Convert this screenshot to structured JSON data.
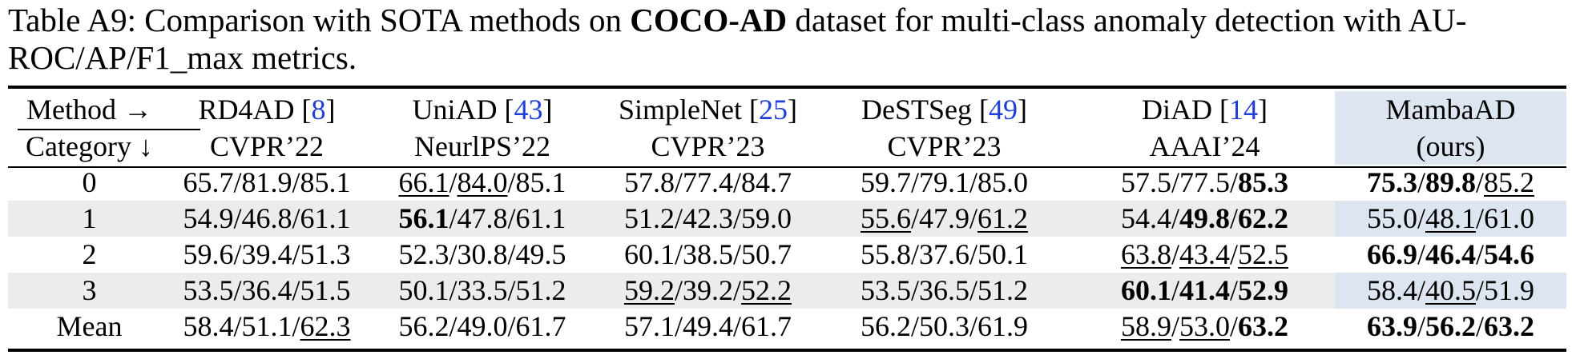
{
  "caption": {
    "prefix": "Table A9: Comparison with SOTA methods on ",
    "dataset": "COCO-AD",
    "suffix": " dataset for multi-class anomaly detection with AU-ROC/AP/F1_max metrics."
  },
  "header": {
    "method_label": "Method →",
    "category_label": "Category ↓",
    "methods": [
      {
        "name": "RD4AD",
        "ref": "8",
        "venue": "CVPR’22"
      },
      {
        "name": "UniAD",
        "ref": "43",
        "venue": "NeurlPS’22"
      },
      {
        "name": "SimpleNet",
        "ref": "25",
        "venue": "CVPR’23"
      },
      {
        "name": "DeSTSeg",
        "ref": "49",
        "venue": "CVPR’23"
      },
      {
        "name": "DiAD",
        "ref": "14",
        "venue": "AAAI’24"
      },
      {
        "name": "MambaAD",
        "ref": "",
        "venue": "(ours)"
      }
    ]
  },
  "rows": [
    {
      "category": "0",
      "cells": [
        [
          {
            "v": "65.7",
            "s": ""
          },
          {
            "v": "81.9",
            "s": ""
          },
          {
            "v": "85.1",
            "s": ""
          }
        ],
        [
          {
            "v": "66.1",
            "s": "u"
          },
          {
            "v": "84.0",
            "s": "u"
          },
          {
            "v": "85.1",
            "s": ""
          }
        ],
        [
          {
            "v": "57.8",
            "s": ""
          },
          {
            "v": "77.4",
            "s": ""
          },
          {
            "v": "84.7",
            "s": ""
          }
        ],
        [
          {
            "v": "59.7",
            "s": ""
          },
          {
            "v": "79.1",
            "s": ""
          },
          {
            "v": "85.0",
            "s": ""
          }
        ],
        [
          {
            "v": "57.5",
            "s": ""
          },
          {
            "v": "77.5",
            "s": ""
          },
          {
            "v": "85.3",
            "s": "b"
          }
        ],
        [
          {
            "v": "75.3",
            "s": "b"
          },
          {
            "v": "89.8",
            "s": "b"
          },
          {
            "v": "85.2",
            "s": "u"
          }
        ]
      ]
    },
    {
      "category": "1",
      "cells": [
        [
          {
            "v": "54.9",
            "s": ""
          },
          {
            "v": "46.8",
            "s": ""
          },
          {
            "v": "61.1",
            "s": ""
          }
        ],
        [
          {
            "v": "56.1",
            "s": "b"
          },
          {
            "v": "47.8",
            "s": ""
          },
          {
            "v": "61.1",
            "s": ""
          }
        ],
        [
          {
            "v": "51.2",
            "s": ""
          },
          {
            "v": "42.3",
            "s": ""
          },
          {
            "v": "59.0",
            "s": ""
          }
        ],
        [
          {
            "v": "55.6",
            "s": "u"
          },
          {
            "v": "47.9",
            "s": ""
          },
          {
            "v": "61.2",
            "s": "u"
          }
        ],
        [
          {
            "v": "54.4",
            "s": ""
          },
          {
            "v": "49.8",
            "s": "b"
          },
          {
            "v": "62.2",
            "s": "b"
          }
        ],
        [
          {
            "v": "55.0",
            "s": ""
          },
          {
            "v": "48.1",
            "s": "u"
          },
          {
            "v": "61.0",
            "s": ""
          }
        ]
      ]
    },
    {
      "category": "2",
      "cells": [
        [
          {
            "v": "59.6",
            "s": ""
          },
          {
            "v": "39.4",
            "s": ""
          },
          {
            "v": "51.3",
            "s": ""
          }
        ],
        [
          {
            "v": "52.3",
            "s": ""
          },
          {
            "v": "30.8",
            "s": ""
          },
          {
            "v": "49.5",
            "s": ""
          }
        ],
        [
          {
            "v": "60.1",
            "s": ""
          },
          {
            "v": "38.5",
            "s": ""
          },
          {
            "v": "50.7",
            "s": ""
          }
        ],
        [
          {
            "v": "55.8",
            "s": ""
          },
          {
            "v": "37.6",
            "s": ""
          },
          {
            "v": "50.1",
            "s": ""
          }
        ],
        [
          {
            "v": "63.8",
            "s": "u"
          },
          {
            "v": "43.4",
            "s": "u"
          },
          {
            "v": "52.5",
            "s": "u"
          }
        ],
        [
          {
            "v": "66.9",
            "s": "b"
          },
          {
            "v": "46.4",
            "s": "b"
          },
          {
            "v": "54.6",
            "s": "b"
          }
        ]
      ]
    },
    {
      "category": "3",
      "cells": [
        [
          {
            "v": "53.5",
            "s": ""
          },
          {
            "v": "36.4",
            "s": ""
          },
          {
            "v": "51.5",
            "s": ""
          }
        ],
        [
          {
            "v": "50.1",
            "s": ""
          },
          {
            "v": "33.5",
            "s": ""
          },
          {
            "v": "51.2",
            "s": ""
          }
        ],
        [
          {
            "v": "59.2",
            "s": "u"
          },
          {
            "v": "39.2",
            "s": ""
          },
          {
            "v": "52.2",
            "s": "u"
          }
        ],
        [
          {
            "v": "53.5",
            "s": ""
          },
          {
            "v": "36.5",
            "s": ""
          },
          {
            "v": "51.2",
            "s": ""
          }
        ],
        [
          {
            "v": "60.1",
            "s": "b"
          },
          {
            "v": "41.4",
            "s": "b"
          },
          {
            "v": "52.9",
            "s": "b"
          }
        ],
        [
          {
            "v": "58.4",
            "s": ""
          },
          {
            "v": "40.5",
            "s": "u"
          },
          {
            "v": "51.9",
            "s": ""
          }
        ]
      ]
    },
    {
      "category": "Mean",
      "cells": [
        [
          {
            "v": "58.4",
            "s": ""
          },
          {
            "v": "51.1",
            "s": ""
          },
          {
            "v": "62.3",
            "s": "u"
          }
        ],
        [
          {
            "v": "56.2",
            "s": ""
          },
          {
            "v": "49.0",
            "s": ""
          },
          {
            "v": "61.7",
            "s": ""
          }
        ],
        [
          {
            "v": "57.1",
            "s": ""
          },
          {
            "v": "49.4",
            "s": ""
          },
          {
            "v": "61.7",
            "s": ""
          }
        ],
        [
          {
            "v": "56.2",
            "s": ""
          },
          {
            "v": "50.3",
            "s": ""
          },
          {
            "v": "61.9",
            "s": ""
          }
        ],
        [
          {
            "v": "58.9",
            "s": "u"
          },
          {
            "v": "53.0",
            "s": "u"
          },
          {
            "v": "63.2",
            "s": "b"
          }
        ],
        [
          {
            "v": "63.9",
            "s": "b"
          },
          {
            "v": "56.2",
            "s": "b"
          },
          {
            "v": "63.2",
            "s": "b"
          }
        ]
      ]
    }
  ],
  "colors": {
    "link": "#1f3fd8",
    "ours_bg": "#dde6f0",
    "stripe_bg": "#ececec"
  }
}
